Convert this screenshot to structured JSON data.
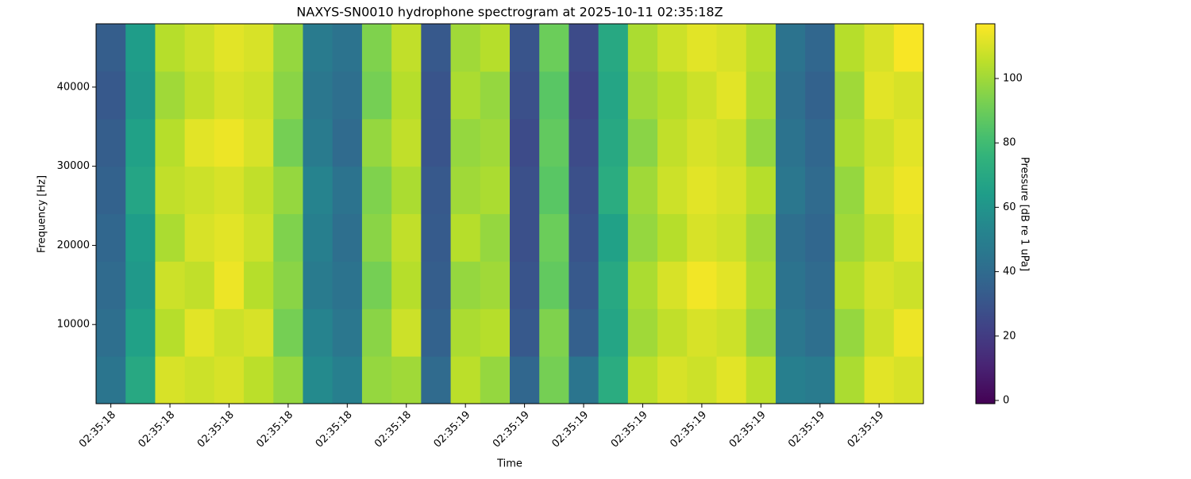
{
  "chart_data": {
    "type": "heatmap",
    "title": "NAXYS-SN0010 hydrophone spectrogram at 2025-10-11 02:35:18Z",
    "x_label": "Time",
    "y_label": "Frequency [Hz]",
    "categories": [
      "02:35:18",
      null,
      "02:35:18",
      null,
      "02:35:18",
      null,
      "02:35:18",
      null,
      "02:35:18",
      null,
      "02:35:18",
      null,
      "02:35:19",
      null,
      "02:35:19",
      null,
      "02:35:19",
      null,
      "02:35:19",
      null,
      "02:35:19",
      null,
      "02:35:19",
      null,
      "02:35:19",
      null,
      "02:35:19",
      null
    ],
    "y_edges": [
      0,
      6000,
      12000,
      18000,
      24000,
      30000,
      36000,
      42000,
      48000
    ],
    "ylim": [
      0,
      48000
    ],
    "yticks": [
      10000,
      20000,
      30000,
      40000
    ],
    "z": [
      [
        45,
        70,
        110,
        108,
        110,
        105,
        98,
        55,
        50,
        98,
        100,
        40,
        105,
        98,
        38,
        92,
        45,
        72,
        105,
        110,
        108,
        112,
        105,
        50,
        48,
        102,
        112,
        110
      ],
      [
        42,
        66,
        104,
        112,
        108,
        110,
        92,
        52,
        46,
        96,
        108,
        36,
        102,
        104,
        32,
        94,
        35,
        68,
        100,
        106,
        110,
        108,
        98,
        46,
        42,
        98,
        108,
        114
      ],
      [
        40,
        62,
        108,
        106,
        114,
        104,
        96,
        48,
        44,
        92,
        104,
        34,
        98,
        100,
        30,
        88,
        32,
        70,
        102,
        110,
        115,
        112,
        102,
        44,
        40,
        104,
        110,
        108
      ],
      [
        38,
        64,
        102,
        110,
        112,
        108,
        94,
        50,
        42,
        96,
        106,
        33,
        104,
        98,
        28,
        90,
        30,
        66,
        98,
        104,
        110,
        108,
        100,
        42,
        38,
        100,
        106,
        112
      ],
      [
        36,
        68,
        106,
        108,
        110,
        106,
        98,
        52,
        44,
        94,
        102,
        32,
        100,
        102,
        28,
        86,
        28,
        72,
        100,
        108,
        112,
        110,
        104,
        46,
        40,
        98,
        110,
        114
      ],
      [
        34,
        66,
        104,
        112,
        114,
        110,
        92,
        48,
        40,
        98,
        106,
        30,
        98,
        100,
        26,
        88,
        26,
        70,
        96,
        106,
        110,
        108,
        98,
        44,
        38,
        102,
        108,
        112
      ],
      [
        32,
        62,
        100,
        106,
        110,
        108,
        96,
        46,
        42,
        92,
        104,
        30,
        102,
        98,
        28,
        86,
        24,
        68,
        100,
        104,
        108,
        112,
        102,
        42,
        36,
        100,
        112,
        110
      ],
      [
        34,
        64,
        104,
        108,
        112,
        110,
        98,
        48,
        44,
        94,
        106,
        32,
        100,
        104,
        30,
        90,
        26,
        70,
        102,
        108,
        112,
        110,
        104,
        44,
        38,
        104,
        110,
        116
      ]
    ],
    "colormap": "viridis",
    "colorbar_label": "Pressure [dB re 1 uPa]",
    "clim": [
      -1,
      117
    ],
    "cticks": [
      0,
      20,
      40,
      60,
      80,
      100
    ]
  }
}
